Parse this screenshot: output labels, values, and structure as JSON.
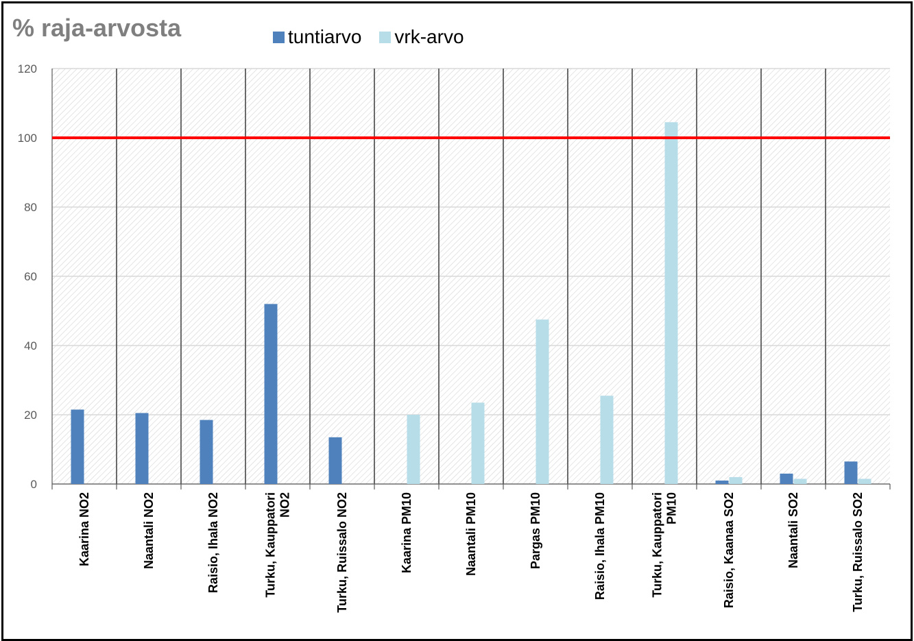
{
  "chart_data": {
    "type": "bar",
    "title": "% raja-arvosta",
    "categories": [
      "Kaarina NO2",
      "Naantali NO2",
      "Raisio, Ihala NO2",
      "Turku, Kauppatori NO2",
      "Turku, Ruissalo NO2",
      "Kaarina PM10",
      "Naantali PM10",
      "Pargas PM10",
      "Raisio, Ihala PM10",
      "Turku, Kauppatori PM10",
      "Raisio, Kaanaa SO2",
      "Naantali SO2",
      "Turku, Ruissalo SO2"
    ],
    "series": [
      {
        "name": "tuntiarvo",
        "color": "#4f81bd",
        "values": [
          21.5,
          20.5,
          18.5,
          52,
          13.5,
          null,
          null,
          null,
          null,
          null,
          1,
          3,
          6.5
        ]
      },
      {
        "name": "vrk-arvo",
        "color": "#b7dde8",
        "values": [
          null,
          null,
          null,
          null,
          null,
          20,
          23.5,
          47.5,
          25.5,
          104.5,
          2,
          1.5,
          1.5
        ]
      }
    ],
    "ylim": [
      0,
      120
    ],
    "yticks": [
      0,
      20,
      40,
      60,
      80,
      100,
      120
    ],
    "threshold": {
      "value": 100,
      "color": "#ff0000"
    },
    "grid": true,
    "legend_position": "top",
    "xlabel": "",
    "ylabel": ""
  }
}
